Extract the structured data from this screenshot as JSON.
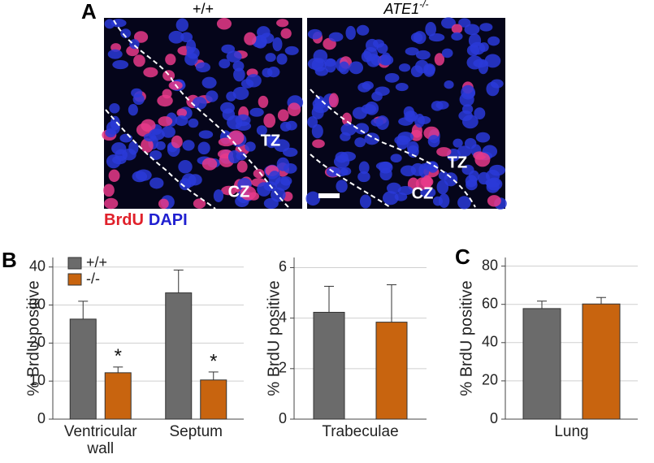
{
  "panel_a": {
    "label": "A",
    "left_title": "+/+",
    "right_title": "ATE1",
    "right_title_sup": "-/-",
    "left_zones": [
      "TZ",
      "CZ"
    ],
    "right_zones": [
      "TZ",
      "CZ"
    ],
    "stain_1": "BrdU",
    "stain_2": "DAPI"
  },
  "panel_labels": [
    "B",
    "C"
  ],
  "chart_data": [
    {
      "type": "bar",
      "y_label": "% BrdU positive",
      "categories": [
        "Ventricular wall",
        "Septum"
      ],
      "series": [
        {
          "name": "+/+",
          "color": "#6b6b6b",
          "values": [
            26.3,
            33.2
          ],
          "errors": [
            4.7,
            6.0
          ]
        },
        {
          "name": "-/-",
          "color": "#c8640f",
          "values": [
            12.2,
            10.3
          ],
          "errors": [
            1.5,
            2.1
          ]
        }
      ],
      "annotations": [
        "*",
        "*"
      ],
      "ylim": [
        0,
        42.5
      ],
      "yticks": [
        0,
        10,
        20,
        30,
        40
      ],
      "grid": true,
      "legend": "top-left"
    },
    {
      "type": "bar",
      "y_label": "% BrdU positive",
      "categories": [
        "Trabeculae"
      ],
      "series": [
        {
          "color": "#6b6b6b",
          "values": [
            4.23
          ],
          "errors": [
            1.03
          ]
        },
        {
          "color": "#c8640f",
          "values": [
            3.84
          ],
          "errors": [
            1.48
          ]
        }
      ],
      "ylim": [
        0,
        6.4
      ],
      "yticks": [
        0,
        2,
        4,
        6
      ],
      "grid": true
    },
    {
      "type": "bar",
      "y_label": "% BrdU positive",
      "categories": [
        "Lung"
      ],
      "series": [
        {
          "color": "#6b6b6b",
          "values": [
            57.8
          ],
          "errors": [
            3.9
          ]
        },
        {
          "color": "#c8640f",
          "values": [
            60.2
          ],
          "errors": [
            3.4
          ]
        }
      ],
      "ylim": [
        0,
        84.5
      ],
      "yticks": [
        0,
        20,
        40,
        60,
        80
      ],
      "grid": true
    }
  ]
}
